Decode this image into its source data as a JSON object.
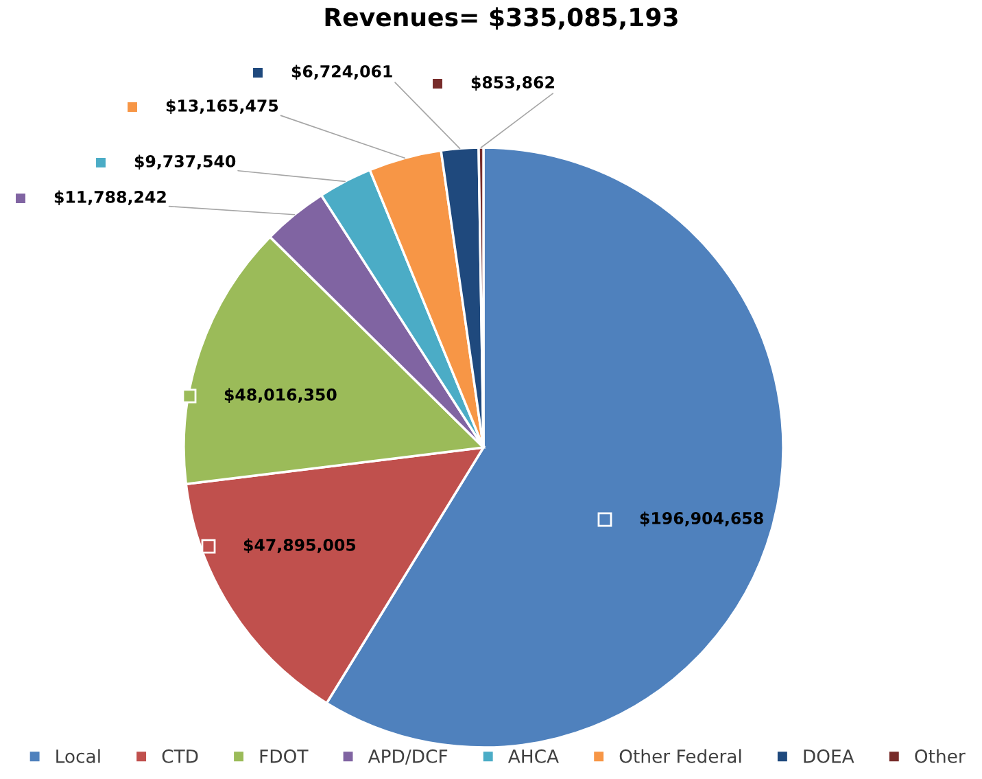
{
  "chart_data": {
    "type": "pie",
    "title": "Revenues= $335,085,193",
    "categories": [
      "Local",
      "CTD",
      "FDOT",
      "APD/DCF",
      "AHCA",
      "Other Federal",
      "DOEA",
      "Other"
    ],
    "values": [
      196904658,
      47895005,
      48016350,
      11788242,
      9737540,
      13165475,
      6724061,
      853862
    ],
    "colors": [
      "#4f81bd",
      "#c0504d",
      "#9bbb59",
      "#8064a2",
      "#4bacc6",
      "#f79646",
      "#1f497d",
      "#772c2a"
    ],
    "value_labels": [
      "$196,904,658",
      "$47,895,005",
      "$48,016,350",
      "$11,788,242",
      "$9,737,540",
      "$13,165,475",
      "$6,724,061",
      "$853,862"
    ],
    "legend": "bottom"
  }
}
